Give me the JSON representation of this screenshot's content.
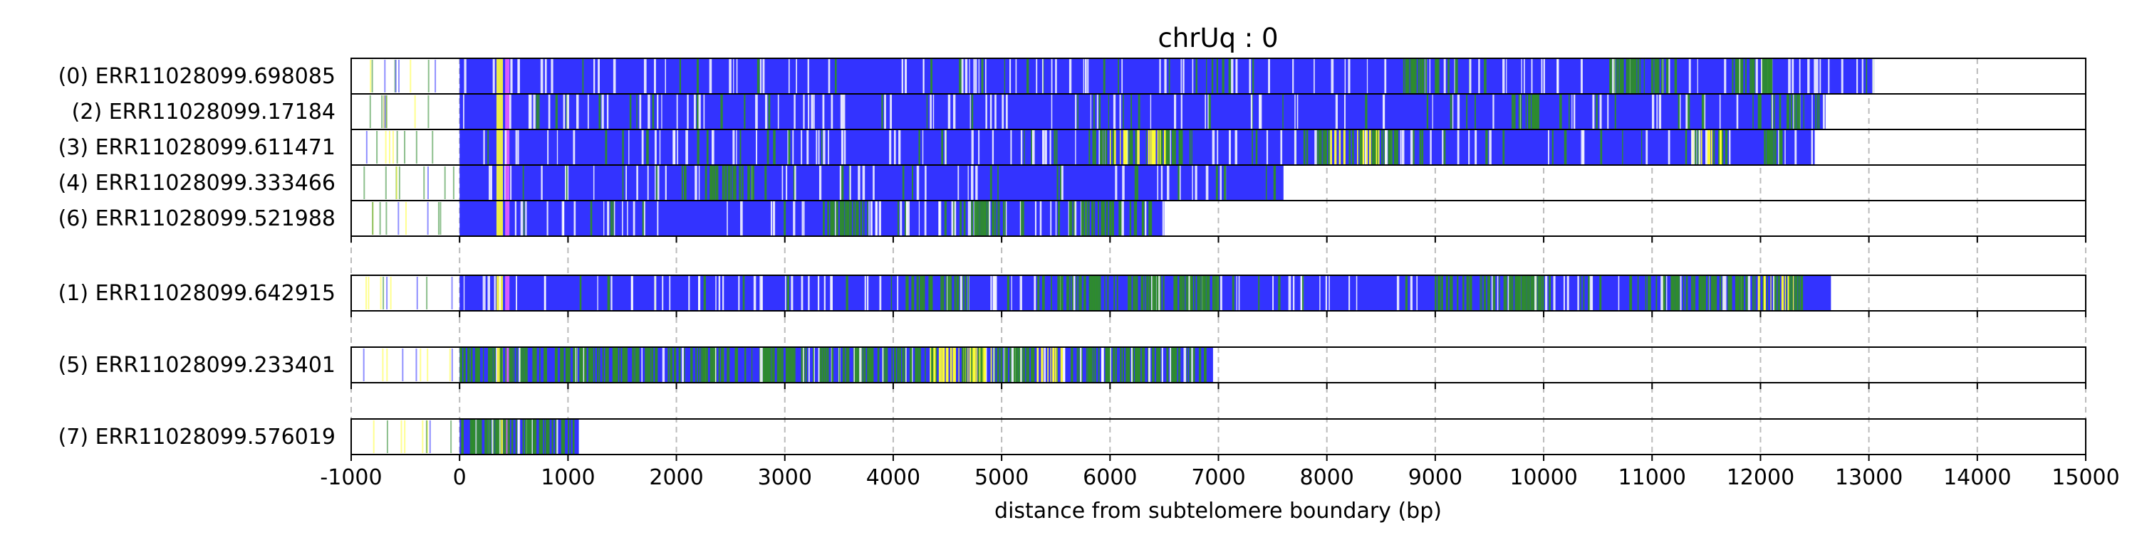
{
  "chart_data": {
    "type": "track",
    "title": "chrUq : 0",
    "xlabel": "distance from subtelomere boundary (bp)",
    "xlim": [
      -1000,
      15000
    ],
    "x_ticks": [
      -1000,
      0,
      1000,
      2000,
      3000,
      4000,
      5000,
      6000,
      7000,
      8000,
      9000,
      10000,
      11000,
      12000,
      13000,
      14000,
      15000
    ],
    "x_tick_labels": [
      "-1000",
      "0",
      "1000",
      "2000",
      "3000",
      "4000",
      "5000",
      "6000",
      "7000",
      "8000",
      "9000",
      "10000",
      "11000",
      "12000",
      "13000",
      "14000",
      "15000"
    ],
    "grid": "vertical dashed lines at major ticks",
    "colors": {
      "primary_repeat": "#3333ff",
      "variant_green": "#2e8b2e",
      "variant_yellow": "#ffff33",
      "variant_pink": "#ff66ff",
      "variant_white": "#ffffff",
      "frame": "#000000",
      "grid": "#bbbbbb"
    },
    "groups": [
      {
        "reads": [
          {
            "label": "(0) ERR11028099.698085",
            "end": 13050,
            "green_zones": [
              [
                8700,
                9200
              ],
              [
                10600,
                10900
              ],
              [
                10950,
                11250
              ],
              [
                11700,
                12100
              ]
            ],
            "yellow_zones": [],
            "seed": 11
          },
          {
            "label": "(2) ERR11028099.17184",
            "end": 12600,
            "green_zones": [
              [
                9700,
                9950
              ],
              [
                11900,
                12400
              ]
            ],
            "yellow_zones": [],
            "seed": 23
          },
          {
            "label": "(3) ERR11028099.611471",
            "end": 12500,
            "green_zones": [
              [
                5800,
                6800
              ],
              [
                7900,
                8700
              ],
              [
                11300,
                11700
              ],
              [
                12000,
                12200
              ]
            ],
            "yellow_zones": [
              [
                5900,
                6500
              ],
              [
                8000,
                8500
              ],
              [
                11350,
                11650
              ]
            ],
            "seed": 37
          },
          {
            "label": "(4) ERR11028099.333466",
            "end": 7600,
            "green_zones": [
              [
                2300,
                2700
              ]
            ],
            "yellow_zones": [],
            "seed": 41
          },
          {
            "label": "(6) ERR11028099.521988",
            "end": 6500,
            "green_zones": [
              [
                3300,
                3800
              ],
              [
                4600,
                5200
              ],
              [
                5600,
                6400
              ]
            ],
            "yellow_zones": [],
            "seed": 53
          }
        ]
      },
      {
        "reads": [
          {
            "label": "(1) ERR11028099.642915",
            "end": 12650,
            "green_zones": [
              [
                4100,
                4700
              ],
              [
                5500,
                7000
              ],
              [
                9000,
                10000
              ],
              [
                10800,
                12400
              ]
            ],
            "yellow_zones": [
              [
                11900,
                12300
              ]
            ],
            "seed": 67
          }
        ]
      },
      {
        "reads": [
          {
            "label": "(5) ERR11028099.233401",
            "end": 6950,
            "green_zones": [
              [
                0,
                6950
              ]
            ],
            "yellow_zones": [
              [
                4300,
                4900
              ],
              [
                5300,
                5600
              ]
            ],
            "seed": 71
          }
        ]
      },
      {
        "reads": [
          {
            "label": "(7) ERR11028099.576019",
            "end": 1100,
            "green_zones": [
              [
                0,
                1100
              ]
            ],
            "yellow_zones": [],
            "seed": 83
          }
        ]
      }
    ]
  }
}
